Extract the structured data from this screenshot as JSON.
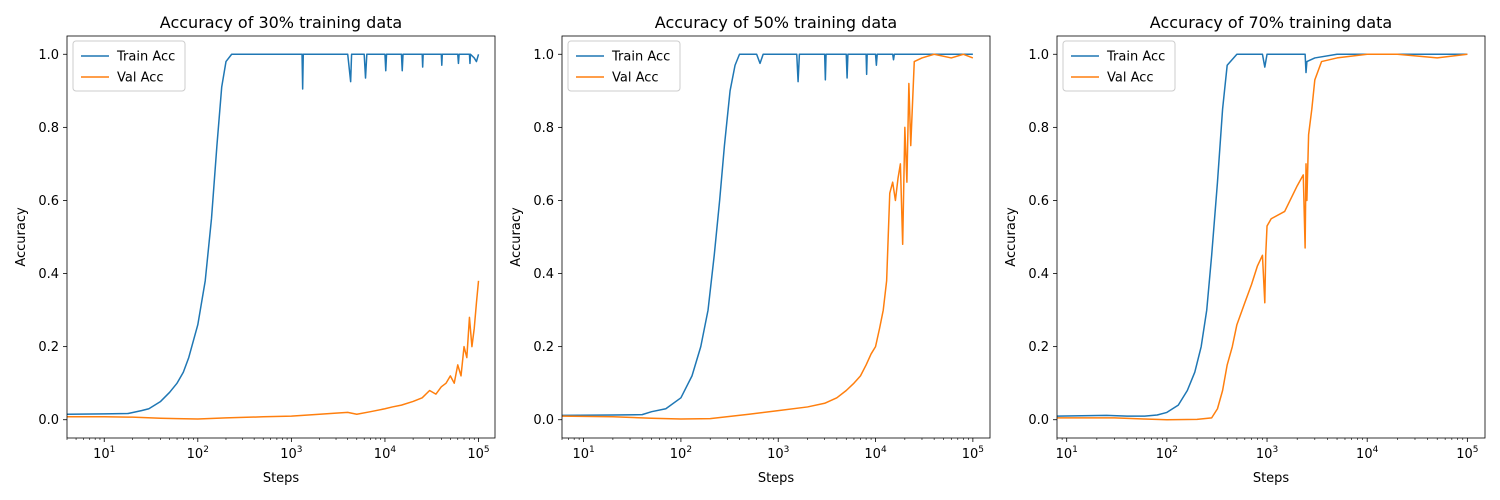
{
  "colors": {
    "train": "#1f77b4",
    "val": "#ff7f0e"
  },
  "chart_data": [
    {
      "type": "line",
      "title": "Accuracy of 30% training data",
      "xlabel": "Steps",
      "ylabel": "Accuracy",
      "xscale": "log",
      "xlim": [
        4,
        150000
      ],
      "ylim": [
        -0.05,
        1.05
      ],
      "xticks": [
        10,
        100,
        1000,
        10000,
        100000
      ],
      "xtick_labels": [
        {
          "base": "10",
          "exp": "1"
        },
        {
          "base": "10",
          "exp": "2"
        },
        {
          "base": "10",
          "exp": "3"
        },
        {
          "base": "10",
          "exp": "4"
        },
        {
          "base": "10",
          "exp": "5"
        }
      ],
      "yticks": [
        0.0,
        0.2,
        0.4,
        0.6,
        0.8,
        1.0
      ],
      "ytick_labels": [
        "0.0",
        "0.2",
        "0.4",
        "0.6",
        "0.8",
        "1.0"
      ],
      "legend": "upper-left",
      "series": [
        {
          "name": "Train Acc",
          "color_key": "train",
          "x": [
            4,
            10,
            18,
            25,
            30,
            40,
            50,
            60,
            70,
            80,
            100,
            120,
            140,
            160,
            180,
            200,
            230,
            260,
            400,
            1000,
            1300,
            1320,
            1340,
            2000,
            4000,
            4300,
            4400,
            6000,
            6200,
            6400,
            10000,
            10200,
            10400,
            15000,
            15300,
            15600,
            25000,
            25300,
            25600,
            40000,
            40500,
            41000,
            60000,
            61000,
            62000,
            80000,
            81000,
            82000,
            90000,
            95000,
            100000
          ],
          "y": [
            0.015,
            0.016,
            0.017,
            0.025,
            0.03,
            0.05,
            0.075,
            0.1,
            0.13,
            0.17,
            0.26,
            0.38,
            0.55,
            0.75,
            0.91,
            0.98,
            1.0,
            1.0,
            1.0,
            1.0,
            1.0,
            0.905,
            1.0,
            1.0,
            1.0,
            0.925,
            1.0,
            1.0,
            0.935,
            1.0,
            1.0,
            0.955,
            1.0,
            1.0,
            0.955,
            1.0,
            1.0,
            0.965,
            1.0,
            1.0,
            0.97,
            1.0,
            1.0,
            0.975,
            1.0,
            1.0,
            0.975,
            1.0,
            0.99,
            0.98,
            1.0
          ]
        },
        {
          "name": "Val Acc",
          "color_key": "val",
          "x": [
            4,
            10,
            20,
            40,
            60,
            100,
            200,
            500,
            1000,
            2000,
            3000,
            4000,
            5000,
            7000,
            10000,
            12000,
            15000,
            20000,
            25000,
            30000,
            35000,
            40000,
            45000,
            50000,
            55000,
            60000,
            65000,
            70000,
            75000,
            80000,
            85000,
            90000,
            95000,
            100000
          ],
          "y": [
            0.008,
            0.008,
            0.007,
            0.004,
            0.003,
            0.002,
            0.005,
            0.008,
            0.01,
            0.015,
            0.018,
            0.02,
            0.015,
            0.022,
            0.03,
            0.035,
            0.04,
            0.05,
            0.06,
            0.08,
            0.07,
            0.09,
            0.1,
            0.12,
            0.1,
            0.15,
            0.12,
            0.2,
            0.17,
            0.28,
            0.2,
            0.25,
            0.32,
            0.38
          ]
        }
      ]
    },
    {
      "type": "line",
      "title": "Accuracy of 50% training data",
      "xlabel": "Steps",
      "ylabel": "Accuracy",
      "xscale": "log",
      "xlim": [
        6,
        150000
      ],
      "ylim": [
        -0.05,
        1.05
      ],
      "xticks": [
        10,
        100,
        1000,
        10000,
        100000
      ],
      "xtick_labels": [
        {
          "base": "10",
          "exp": "1"
        },
        {
          "base": "10",
          "exp": "2"
        },
        {
          "base": "10",
          "exp": "3"
        },
        {
          "base": "10",
          "exp": "4"
        },
        {
          "base": "10",
          "exp": "5"
        }
      ],
      "yticks": [
        0.0,
        0.2,
        0.4,
        0.6,
        0.8,
        1.0
      ],
      "ytick_labels": [
        "0.0",
        "0.2",
        "0.4",
        "0.6",
        "0.8",
        "1.0"
      ],
      "legend": "upper-left",
      "series": [
        {
          "name": "Train Acc",
          "color_key": "train",
          "x": [
            6,
            20,
            40,
            50,
            70,
            100,
            130,
            160,
            190,
            220,
            250,
            280,
            320,
            360,
            400,
            500,
            600,
            650,
            700,
            1000,
            1550,
            1600,
            1650,
            3000,
            3050,
            3100,
            5000,
            5100,
            5200,
            8000,
            8100,
            8200,
            10000,
            10200,
            10400,
            15000,
            15300,
            15600,
            20000,
            100000
          ],
          "y": [
            0.012,
            0.013,
            0.014,
            0.022,
            0.03,
            0.06,
            0.12,
            0.2,
            0.3,
            0.45,
            0.6,
            0.75,
            0.9,
            0.97,
            1.0,
            1.0,
            1.0,
            0.975,
            1.0,
            1.0,
            1.0,
            0.925,
            1.0,
            1.0,
            0.93,
            1.0,
            1.0,
            0.935,
            1.0,
            1.0,
            0.945,
            1.0,
            1.0,
            0.97,
            1.0,
            1.0,
            0.985,
            1.0,
            1.0,
            1.0
          ]
        },
        {
          "name": "Val Acc",
          "color_key": "val",
          "x": [
            6,
            20,
            50,
            100,
            200,
            500,
            1000,
            2000,
            3000,
            4000,
            5000,
            6000,
            7000,
            8000,
            9000,
            10000,
            11000,
            12000,
            13000,
            14000,
            15000,
            16000,
            17000,
            18000,
            19000,
            20000,
            21000,
            22000,
            23000,
            25000,
            30000,
            40000,
            60000,
            80000,
            100000
          ],
          "y": [
            0.01,
            0.008,
            0.004,
            0.002,
            0.003,
            0.015,
            0.025,
            0.035,
            0.045,
            0.06,
            0.08,
            0.1,
            0.12,
            0.15,
            0.18,
            0.2,
            0.25,
            0.3,
            0.38,
            0.62,
            0.65,
            0.6,
            0.66,
            0.7,
            0.48,
            0.8,
            0.65,
            0.92,
            0.75,
            0.98,
            0.99,
            1.0,
            0.99,
            1.0,
            0.99
          ]
        }
      ]
    },
    {
      "type": "line",
      "title": "Accuracy of 70% training data",
      "xlabel": "Steps",
      "ylabel": "Accuracy",
      "xscale": "log",
      "xlim": [
        8,
        150000
      ],
      "ylim": [
        -0.05,
        1.05
      ],
      "xticks": [
        10,
        100,
        1000,
        10000,
        100000
      ],
      "xtick_labels": [
        {
          "base": "10",
          "exp": "1"
        },
        {
          "base": "10",
          "exp": "2"
        },
        {
          "base": "10",
          "exp": "3"
        },
        {
          "base": "10",
          "exp": "4"
        },
        {
          "base": "10",
          "exp": "5"
        }
      ],
      "yticks": [
        0.0,
        0.2,
        0.4,
        0.6,
        0.8,
        1.0
      ],
      "ytick_labels": [
        "0.0",
        "0.2",
        "0.4",
        "0.6",
        "0.8",
        "1.0"
      ],
      "legend": "upper-left",
      "series": [
        {
          "name": "Train Acc",
          "color_key": "train",
          "x": [
            8,
            25,
            40,
            60,
            80,
            100,
            130,
            160,
            190,
            220,
            250,
            280,
            320,
            360,
            400,
            500,
            900,
            950,
            1000,
            1500,
            2400,
            2450,
            2500,
            3000,
            5000,
            7000,
            100000
          ],
          "y": [
            0.01,
            0.012,
            0.01,
            0.01,
            0.013,
            0.02,
            0.04,
            0.08,
            0.13,
            0.2,
            0.3,
            0.45,
            0.65,
            0.85,
            0.97,
            1.0,
            1.0,
            0.965,
            1.0,
            1.0,
            1.0,
            0.95,
            0.98,
            0.99,
            1.0,
            1.0,
            1.0
          ]
        },
        {
          "name": "Val Acc",
          "color_key": "val",
          "x": [
            8,
            30,
            60,
            100,
            200,
            280,
            320,
            360,
            400,
            450,
            500,
            600,
            700,
            800,
            900,
            950,
            970,
            1000,
            1100,
            1500,
            2000,
            2300,
            2400,
            2450,
            2500,
            2600,
            2800,
            3000,
            3500,
            5000,
            10000,
            20000,
            50000,
            100000
          ],
          "y": [
            0.005,
            0.005,
            0.002,
            0.0,
            0.001,
            0.005,
            0.03,
            0.08,
            0.15,
            0.2,
            0.26,
            0.32,
            0.37,
            0.42,
            0.45,
            0.32,
            0.45,
            0.53,
            0.55,
            0.57,
            0.64,
            0.67,
            0.47,
            0.7,
            0.6,
            0.78,
            0.85,
            0.93,
            0.98,
            0.99,
            1.0,
            1.0,
            0.99,
            1.0
          ]
        }
      ]
    }
  ]
}
